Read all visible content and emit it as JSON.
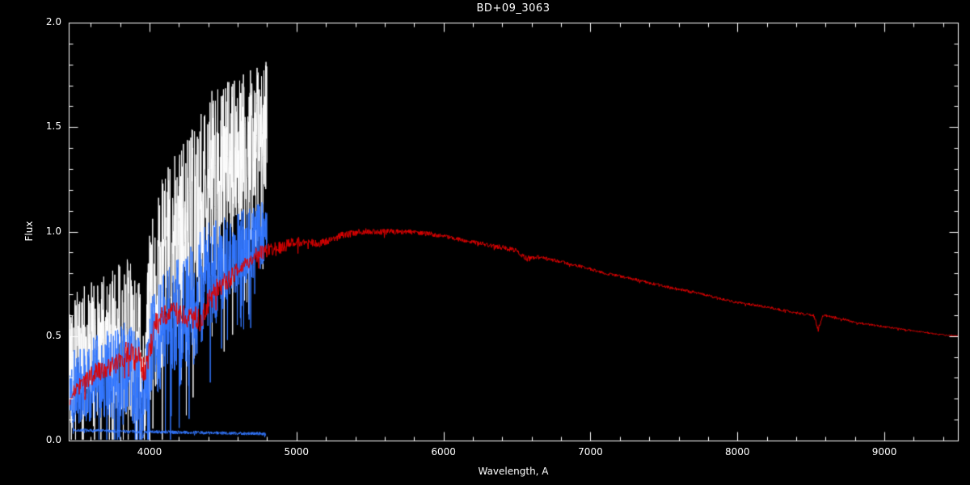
{
  "chart_data": {
    "type": "line",
    "title": "BD+09_3063",
    "xlabel": "Wavelength, A",
    "ylabel": "Flux",
    "xlim": [
      3450,
      9500
    ],
    "ylim": [
      0.0,
      2.0
    ],
    "xticks": [
      4000,
      5000,
      6000,
      7000,
      8000,
      9000
    ],
    "xtick_labels": [
      "4000",
      "5000",
      "6000",
      "7000",
      "8000",
      "9000"
    ],
    "yticks": [
      0.0,
      0.5,
      1.0,
      1.5,
      2.0
    ],
    "ytick_labels": [
      "0.0",
      "0.5",
      "1.0",
      "1.5",
      "2.0"
    ],
    "x_minor_step": 200,
    "y_minor_step": 0.1,
    "grid": false,
    "legend": "none",
    "background": "#000000",
    "axis_color": "#ffffff",
    "series": [
      {
        "name": "observed-spectrum-white",
        "color": "#ffffff",
        "seed": 42,
        "step": 1.6,
        "spike_prob": 0.05,
        "spike_depth": 1.6,
        "envelope": [
          [
            3450,
            0.38,
            0.3
          ],
          [
            3550,
            0.42,
            0.32
          ],
          [
            3650,
            0.45,
            0.33
          ],
          [
            3750,
            0.47,
            0.35
          ],
          [
            3850,
            0.5,
            0.38
          ],
          [
            3920,
            0.45,
            0.38
          ],
          [
            3960,
            0.28,
            0.26
          ],
          [
            4000,
            0.55,
            0.45
          ],
          [
            4100,
            0.85,
            0.45
          ],
          [
            4200,
            0.95,
            0.45
          ],
          [
            4300,
            1.0,
            0.5
          ],
          [
            4400,
            1.25,
            0.42
          ],
          [
            4500,
            1.3,
            0.4
          ],
          [
            4600,
            1.4,
            0.36
          ],
          [
            4700,
            1.45,
            0.33
          ],
          [
            4800,
            1.52,
            0.3
          ]
        ]
      },
      {
        "name": "scaled-spectrum-blue",
        "color": "#3377ff",
        "seed": 1337,
        "step": 1.6,
        "spike_prob": 0.04,
        "spike_depth": 1.5,
        "envelope": [
          [
            3450,
            0.25,
            0.18
          ],
          [
            3550,
            0.28,
            0.2
          ],
          [
            3650,
            0.3,
            0.21
          ],
          [
            3750,
            0.32,
            0.22
          ],
          [
            3850,
            0.33,
            0.24
          ],
          [
            3920,
            0.3,
            0.24
          ],
          [
            3960,
            0.16,
            0.16
          ],
          [
            4000,
            0.38,
            0.28
          ],
          [
            4100,
            0.55,
            0.28
          ],
          [
            4200,
            0.62,
            0.28
          ],
          [
            4300,
            0.65,
            0.3
          ],
          [
            4400,
            0.8,
            0.26
          ],
          [
            4500,
            0.85,
            0.22
          ],
          [
            4600,
            0.92,
            0.2
          ],
          [
            4700,
            0.95,
            0.18
          ],
          [
            4800,
            0.99,
            0.16
          ]
        ]
      },
      {
        "name": "error-spectrum-blue",
        "color": "#3377ff",
        "seed": 7,
        "step": 2.0,
        "spike_prob": 0.01,
        "spike_depth": 1.0,
        "envelope": [
          [
            3480,
            0.05,
            0.008
          ],
          [
            3945,
            0.042,
            0.008
          ],
          [
            3955,
            0.006,
            0.004
          ],
          [
            3965,
            0.042,
            0.008
          ],
          [
            4150,
            0.04,
            0.008
          ],
          [
            4790,
            0.032,
            0.008
          ]
        ]
      },
      {
        "name": "reference-spectrum-red",
        "color": "#e00000",
        "seed": 99,
        "step": 3.0,
        "spike_prob": 0.012,
        "spike_depth": 1.2,
        "envelope": [
          [
            3450,
            0.2,
            0.035
          ],
          [
            3550,
            0.28,
            0.04
          ],
          [
            3650,
            0.33,
            0.05
          ],
          [
            3750,
            0.36,
            0.05
          ],
          [
            3850,
            0.42,
            0.06
          ],
          [
            3930,
            0.38,
            0.07
          ],
          [
            3970,
            0.33,
            0.06
          ],
          [
            4050,
            0.58,
            0.05
          ],
          [
            4150,
            0.62,
            0.05
          ],
          [
            4250,
            0.6,
            0.06
          ],
          [
            4340,
            0.58,
            0.06
          ],
          [
            4450,
            0.72,
            0.05
          ],
          [
            4550,
            0.78,
            0.045
          ],
          [
            4650,
            0.85,
            0.04
          ],
          [
            4750,
            0.9,
            0.04
          ],
          [
            4870,
            0.92,
            0.035
          ],
          [
            5000,
            0.95,
            0.025
          ],
          [
            5150,
            0.94,
            0.02
          ],
          [
            5300,
            0.98,
            0.018
          ],
          [
            5450,
            1.0,
            0.015
          ],
          [
            5600,
            1.0,
            0.015
          ],
          [
            5750,
            1.0,
            0.012
          ],
          [
            5900,
            0.99,
            0.012
          ],
          [
            6050,
            0.97,
            0.01
          ],
          [
            6200,
            0.95,
            0.01
          ],
          [
            6350,
            0.93,
            0.012
          ],
          [
            6500,
            0.91,
            0.012
          ],
          [
            6560,
            0.87,
            0.015
          ],
          [
            6650,
            0.88,
            0.008
          ],
          [
            6800,
            0.855,
            0.008
          ],
          [
            6950,
            0.83,
            0.008
          ],
          [
            7100,
            0.8,
            0.007
          ],
          [
            7250,
            0.78,
            0.007
          ],
          [
            7400,
            0.755,
            0.007
          ],
          [
            7550,
            0.73,
            0.008
          ],
          [
            7700,
            0.71,
            0.007
          ],
          [
            7850,
            0.685,
            0.006
          ],
          [
            8000,
            0.66,
            0.006
          ],
          [
            8150,
            0.645,
            0.006
          ],
          [
            8300,
            0.625,
            0.006
          ],
          [
            8450,
            0.605,
            0.007
          ],
          [
            8520,
            0.6,
            0.006
          ],
          [
            8550,
            0.53,
            0.012
          ],
          [
            8580,
            0.6,
            0.006
          ],
          [
            8700,
            0.585,
            0.006
          ],
          [
            8800,
            0.565,
            0.005
          ],
          [
            8950,
            0.55,
            0.005
          ],
          [
            9100,
            0.535,
            0.004
          ],
          [
            9250,
            0.52,
            0.004
          ],
          [
            9400,
            0.505,
            0.004
          ],
          [
            9500,
            0.5,
            0.004
          ]
        ]
      }
    ]
  }
}
